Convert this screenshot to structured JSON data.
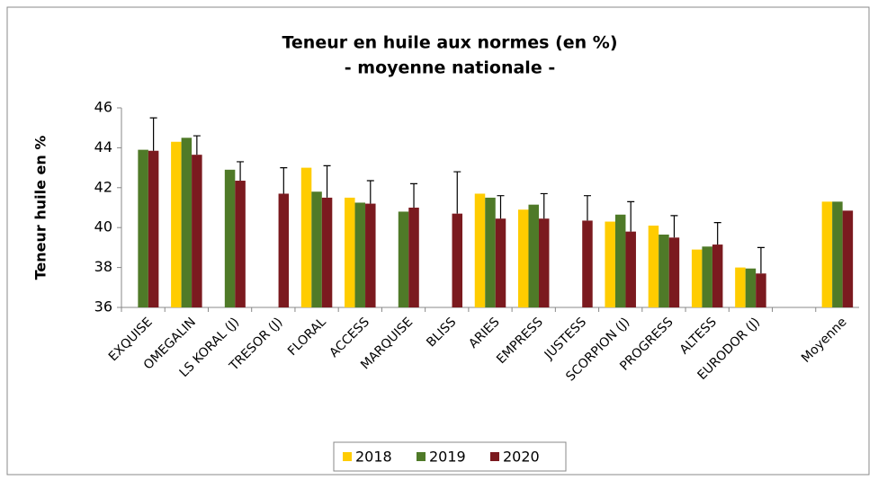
{
  "chart_data": {
    "type": "bar",
    "title": "Teneur en huile aux normes (en %)",
    "subtitle": "- moyenne nationale -",
    "y_label": "Teneur huile en %",
    "categories": [
      "EXQUISE",
      "OMEGALIN",
      "LS KORAL (J)",
      "TRESOR (J)",
      "FLORAL",
      "ACCESS",
      "MARQUISE",
      "BLISS",
      "ARIES",
      "EMPRESS",
      "JUSTESS",
      "SCORPION (J)",
      "PROGRESS",
      "ALTESS",
      "EURODOR (J)",
      null,
      "Moyenne"
    ],
    "series": [
      {
        "name": "2018",
        "color": "#ffcc00",
        "values": [
          null,
          44.3,
          null,
          null,
          43.0,
          41.5,
          null,
          null,
          41.7,
          40.9,
          null,
          40.3,
          40.1,
          38.9,
          38.0,
          null,
          41.3
        ]
      },
      {
        "name": "2019",
        "color": "#4f7a28",
        "values": [
          43.9,
          44.5,
          42.9,
          null,
          41.8,
          41.25,
          40.8,
          null,
          41.5,
          41.15,
          null,
          40.65,
          39.65,
          39.05,
          37.95,
          null,
          41.3
        ]
      },
      {
        "name": "2020",
        "color": "#7b1a1f",
        "values": [
          43.85,
          43.65,
          42.35,
          41.7,
          41.5,
          41.2,
          41.0,
          40.7,
          40.45,
          40.45,
          40.35,
          39.8,
          39.5,
          39.15,
          37.7,
          null,
          40.85
        ],
        "errors": [
          1.65,
          0.95,
          0.95,
          1.3,
          1.6,
          1.15,
          1.2,
          2.1,
          1.15,
          1.25,
          1.25,
          1.5,
          1.1,
          1.1,
          1.3,
          null,
          null
        ]
      }
    ],
    "ylim": [
      36,
      46
    ],
    "yticks": [
      36,
      38,
      40,
      42,
      44,
      46
    ],
    "grid": false,
    "legend": "bottom"
  }
}
